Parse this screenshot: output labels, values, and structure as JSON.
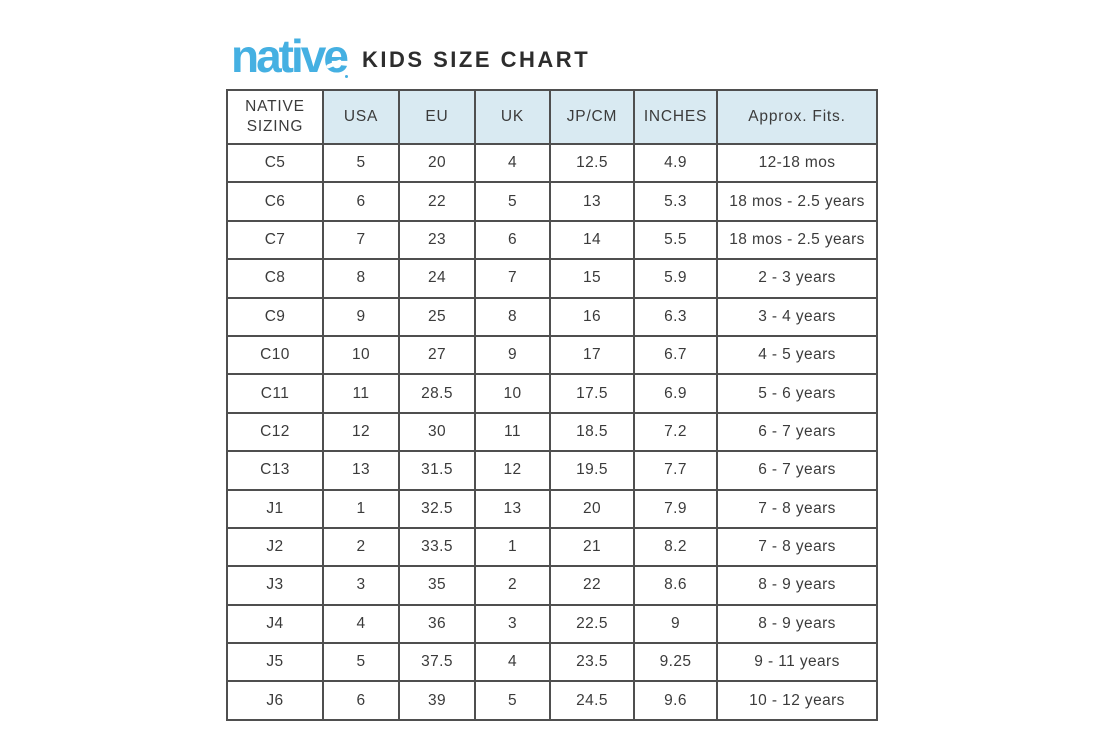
{
  "header": {
    "logo_text": "native",
    "title": "KIDS SIZE CHART"
  },
  "colors": {
    "brand_blue": "#45b0e2",
    "header_cell_bg": "#d9eaf2",
    "table_border": "#4f4f4f",
    "text": "#3b3b3b"
  },
  "chart_data": {
    "type": "table",
    "title": "KIDS SIZE CHART",
    "columns": [
      "NATIVE SIZING",
      "USA",
      "EU",
      "UK",
      "JP/CM",
      "INCHES",
      "Approx. Fits."
    ],
    "rows": [
      [
        "C5",
        "5",
        "20",
        "4",
        "12.5",
        "4.9",
        "12-18 mos"
      ],
      [
        "C6",
        "6",
        "22",
        "5",
        "13",
        "5.3",
        "18 mos - 2.5 years"
      ],
      [
        "C7",
        "7",
        "23",
        "6",
        "14",
        "5.5",
        "18 mos - 2.5 years"
      ],
      [
        "C8",
        "8",
        "24",
        "7",
        "15",
        "5.9",
        "2 - 3 years"
      ],
      [
        "C9",
        "9",
        "25",
        "8",
        "16",
        "6.3",
        "3 - 4 years"
      ],
      [
        "C10",
        "10",
        "27",
        "9",
        "17",
        "6.7",
        "4 - 5 years"
      ],
      [
        "C11",
        "11",
        "28.5",
        "10",
        "17.5",
        "6.9",
        "5 - 6 years"
      ],
      [
        "C12",
        "12",
        "30",
        "11",
        "18.5",
        "7.2",
        "6 - 7 years"
      ],
      [
        "C13",
        "13",
        "31.5",
        "12",
        "19.5",
        "7.7",
        "6 - 7 years"
      ],
      [
        "J1",
        "1",
        "32.5",
        "13",
        "20",
        "7.9",
        "7 - 8 years"
      ],
      [
        "J2",
        "2",
        "33.5",
        "1",
        "21",
        "8.2",
        "7 - 8 years"
      ],
      [
        "J3",
        "3",
        "35",
        "2",
        "22",
        "8.6",
        "8 - 9 years"
      ],
      [
        "J4",
        "4",
        "36",
        "3",
        "22.5",
        "9",
        "8 - 9 years"
      ],
      [
        "J5",
        "5",
        "37.5",
        "4",
        "23.5",
        "9.25",
        "9 - 11 years"
      ],
      [
        "J6",
        "6",
        "39",
        "5",
        "24.5",
        "9.6",
        "10 - 12 years"
      ]
    ]
  }
}
